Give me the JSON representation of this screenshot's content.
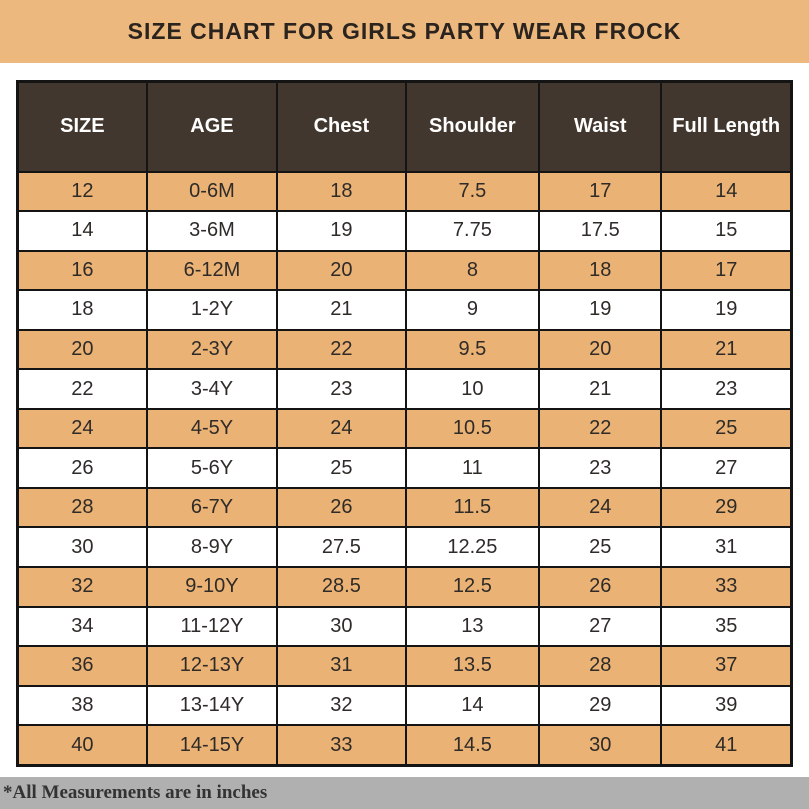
{
  "chart_data": {
    "type": "table",
    "title": "SIZE CHART FOR GIRLS PARTY WEAR FROCK",
    "columns": [
      "SIZE",
      "AGE",
      "Chest",
      "Shoulder",
      "Waist",
      "Full Length"
    ],
    "rows": [
      [
        "12",
        "0-6M",
        "18",
        "7.5",
        "17",
        "14"
      ],
      [
        "14",
        "3-6M",
        "19",
        "7.75",
        "17.5",
        "15"
      ],
      [
        "16",
        "6-12M",
        "20",
        "8",
        "18",
        "17"
      ],
      [
        "18",
        "1-2Y",
        "21",
        "9",
        "19",
        "19"
      ],
      [
        "20",
        "2-3Y",
        "22",
        "9.5",
        "20",
        "21"
      ],
      [
        "22",
        "3-4Y",
        "23",
        "10",
        "21",
        "23"
      ],
      [
        "24",
        "4-5Y",
        "24",
        "10.5",
        "22",
        "25"
      ],
      [
        "26",
        "5-6Y",
        "25",
        "11",
        "23",
        "27"
      ],
      [
        "28",
        "6-7Y",
        "26",
        "11.5",
        "24",
        "29"
      ],
      [
        "30",
        "8-9Y",
        "27.5",
        "12.25",
        "25",
        "31"
      ],
      [
        "32",
        "9-10Y",
        "28.5",
        "12.5",
        "26",
        "33"
      ],
      [
        "34",
        "11-12Y",
        "30",
        "13",
        "27",
        "35"
      ],
      [
        "36",
        "12-13Y",
        "31",
        "13.5",
        "28",
        "37"
      ],
      [
        "38",
        "13-14Y",
        "32",
        "14",
        "29",
        "39"
      ],
      [
        "40",
        "14-15Y",
        "33",
        "14.5",
        "30",
        "41"
      ]
    ],
    "note": "*All Measurements are in inches",
    "layout_hints": {
      "highlighted_rows": "odd rows (1st, 3rd, ...) have tan background",
      "units": "inches"
    }
  },
  "colors": {
    "banner_bg": "#ECB87D",
    "title_text": "#2B241E",
    "header_bg": "#42372E",
    "header_text": "#FFFFFF",
    "row_highlight": "#EBB275",
    "row_plain": "#FFFFFF",
    "cell_text": "#2E2B28",
    "border": "#141414",
    "footer_bg": "#B0B0B0",
    "footer_text": "#333333"
  }
}
